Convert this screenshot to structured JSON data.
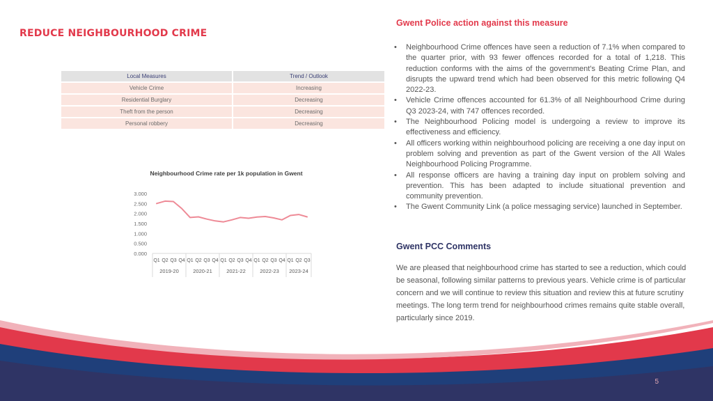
{
  "title": "REDUCE NEIGHBOURHOOD CRIME",
  "table": {
    "headers": [
      "Local Measures",
      "Trend / Outlook"
    ],
    "rows": [
      [
        "Vehicle Crime",
        "Increasing"
      ],
      [
        "Residential Burglary",
        "Decreasing"
      ],
      [
        "Theft from the person",
        "Decreasing"
      ],
      [
        "Personal robbery",
        "Decreasing"
      ]
    ]
  },
  "chart_data": {
    "type": "line",
    "title": "Neighbourhood Crime rate per 1k population in Gwent",
    "y_ticks": [
      "3.000",
      "2.500",
      "2.000",
      "1.500",
      "1.000",
      "0.500",
      "0.000"
    ],
    "ylim": [
      0,
      3
    ],
    "quarters": [
      "Q1",
      "Q2",
      "Q3",
      "Q4",
      "Q1",
      "Q2",
      "Q3",
      "Q4",
      "Q1",
      "Q2",
      "Q3",
      "Q4",
      "Q1",
      "Q2",
      "Q3",
      "Q4",
      "Q1",
      "Q2",
      "Q3"
    ],
    "years": [
      "2019-20",
      "2020-21",
      "2021-22",
      "2022-23",
      "2023-24"
    ],
    "values": [
      2.5,
      2.62,
      2.6,
      2.25,
      1.8,
      1.83,
      1.72,
      1.63,
      1.58,
      1.68,
      1.8,
      1.76,
      1.82,
      1.85,
      1.78,
      1.68,
      1.9,
      1.95,
      1.83
    ],
    "line_color": "#ee8a96",
    "grid": false
  },
  "actions": {
    "heading": "Gwent Police action against this measure",
    "bullets": [
      "Neighbourhood Crime offences have seen a reduction of 7.1% when compared to the quarter prior, with 93 fewer offences recorded for a total of 1,218. This reduction conforms with the aims of the government's Beating Crime Plan, and disrupts the upward trend which had been observed for this metric following Q4 2022-23.",
      "Vehicle Crime offences accounted for 61.3% of all Neighbourhood Crime during Q3 2023-24, with 747 offences recorded.",
      "The Neighbourhood Policing model is undergoing a review to improve its effectiveness and efficiency.",
      "All officers working within neighbourhood policing are receiving a one day input on problem solving and prevention as part of the Gwent version of the All Wales Neighbourhood Policing Programme.",
      "All response officers are having a training day input on problem solving and prevention. This has been adapted to include situational prevention and community prevention.",
      "The Gwent Community Link (a police messaging service) launched in September."
    ]
  },
  "pcc": {
    "heading": "Gwent PCC Comments",
    "text": "We are pleased that neighbourhood crime has started to see a reduction, which could be seasonal, following similar patterns to previous years. Vehicle crime is of particular concern and we will continue to review this situation and review this at future scrutiny meetings. The long term trend for neighbourhood crimes remains quite stable overall, particularly since 2019."
  },
  "page_number": "5",
  "colors": {
    "accent_red": "#e2394b",
    "navy": "#2f3465",
    "table_row": "#fbe5df"
  }
}
